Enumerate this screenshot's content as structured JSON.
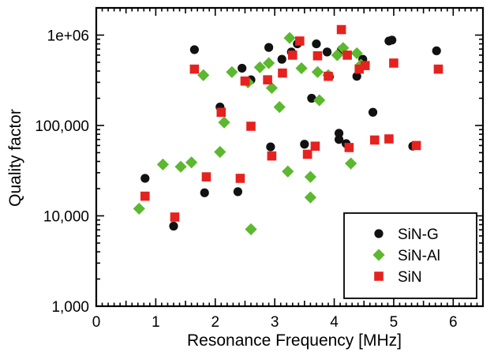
{
  "chart_data": {
    "type": "scatter",
    "title": "",
    "xlabel": "Resonance Frequency [MHz]",
    "ylabel": "Quality factor",
    "xlim": [
      0,
      6.5
    ],
    "ylim": [
      1000,
      2000000
    ],
    "y_scale": "log",
    "grid": false,
    "legend_position": "bottom-right",
    "x_ticks": [
      "0",
      "1",
      "2",
      "3",
      "4",
      "5",
      "6"
    ],
    "y_ticks": [
      {
        "value": 1000,
        "label": "1,000"
      },
      {
        "value": 10000,
        "label": "10,000"
      },
      {
        "value": 100000,
        "label": "100,000"
      },
      {
        "value": 1000000,
        "label": "1e+06"
      }
    ],
    "series": [
      {
        "name": "SiN-G",
        "marker": "circle",
        "color": "#111111",
        "points": [
          [
            0.82,
            26000
          ],
          [
            1.3,
            7700
          ],
          [
            1.65,
            690000
          ],
          [
            1.82,
            18000
          ],
          [
            2.08,
            160000
          ],
          [
            2.38,
            18500
          ],
          [
            2.45,
            430000
          ],
          [
            2.6,
            320000
          ],
          [
            2.9,
            730000
          ],
          [
            2.93,
            58000
          ],
          [
            3.12,
            540000
          ],
          [
            3.28,
            650000
          ],
          [
            3.38,
            800000
          ],
          [
            3.5,
            62000
          ],
          [
            3.62,
            200000
          ],
          [
            3.7,
            800000
          ],
          [
            3.88,
            650000
          ],
          [
            3.92,
            350000
          ],
          [
            4.08,
            82000
          ],
          [
            4.08,
            70000
          ],
          [
            4.12,
            690000
          ],
          [
            4.2,
            63000
          ],
          [
            4.38,
            350000
          ],
          [
            4.48,
            540000
          ],
          [
            4.65,
            140000
          ],
          [
            4.92,
            860000
          ],
          [
            4.97,
            880000
          ],
          [
            5.32,
            59000
          ],
          [
            5.72,
            670000
          ]
        ]
      },
      {
        "name": "SiN-Al",
        "marker": "diamond",
        "color": "#5cb82e",
        "points": [
          [
            0.72,
            12000
          ],
          [
            1.12,
            37000
          ],
          [
            1.42,
            35000
          ],
          [
            1.6,
            39000
          ],
          [
            1.8,
            360000
          ],
          [
            2.08,
            51000
          ],
          [
            2.15,
            108000
          ],
          [
            2.28,
            390000
          ],
          [
            2.55,
            300000
          ],
          [
            2.6,
            7100
          ],
          [
            2.75,
            440000
          ],
          [
            2.9,
            490000
          ],
          [
            2.95,
            260000
          ],
          [
            3.08,
            160000
          ],
          [
            3.22,
            31000
          ],
          [
            3.25,
            930000
          ],
          [
            3.45,
            430000
          ],
          [
            3.6,
            27000
          ],
          [
            3.6,
            16000
          ],
          [
            3.72,
            390000
          ],
          [
            3.75,
            190000
          ],
          [
            3.9,
            360000
          ],
          [
            4.05,
            600000
          ],
          [
            4.15,
            720000
          ],
          [
            4.28,
            38000
          ],
          [
            4.38,
            630000
          ],
          [
            4.45,
            470000
          ]
        ]
      },
      {
        "name": "SiN",
        "marker": "square",
        "color": "#e5221f",
        "points": [
          [
            0.82,
            16500
          ],
          [
            1.32,
            9700
          ],
          [
            1.65,
            420000
          ],
          [
            1.85,
            27000
          ],
          [
            2.1,
            140000
          ],
          [
            2.42,
            26000
          ],
          [
            2.5,
            310000
          ],
          [
            2.6,
            98000
          ],
          [
            2.88,
            320000
          ],
          [
            2.95,
            46000
          ],
          [
            3.13,
            380000
          ],
          [
            3.3,
            600000
          ],
          [
            3.42,
            860000
          ],
          [
            3.55,
            48000
          ],
          [
            3.68,
            59000
          ],
          [
            3.72,
            590000
          ],
          [
            3.9,
            350000
          ],
          [
            4.12,
            1150000
          ],
          [
            4.22,
            600000
          ],
          [
            4.25,
            57000
          ],
          [
            4.42,
            420000
          ],
          [
            4.52,
            460000
          ],
          [
            4.68,
            69000
          ],
          [
            4.92,
            71000
          ],
          [
            5.0,
            490000
          ],
          [
            5.38,
            60000
          ],
          [
            5.75,
            420000
          ]
        ]
      }
    ]
  }
}
